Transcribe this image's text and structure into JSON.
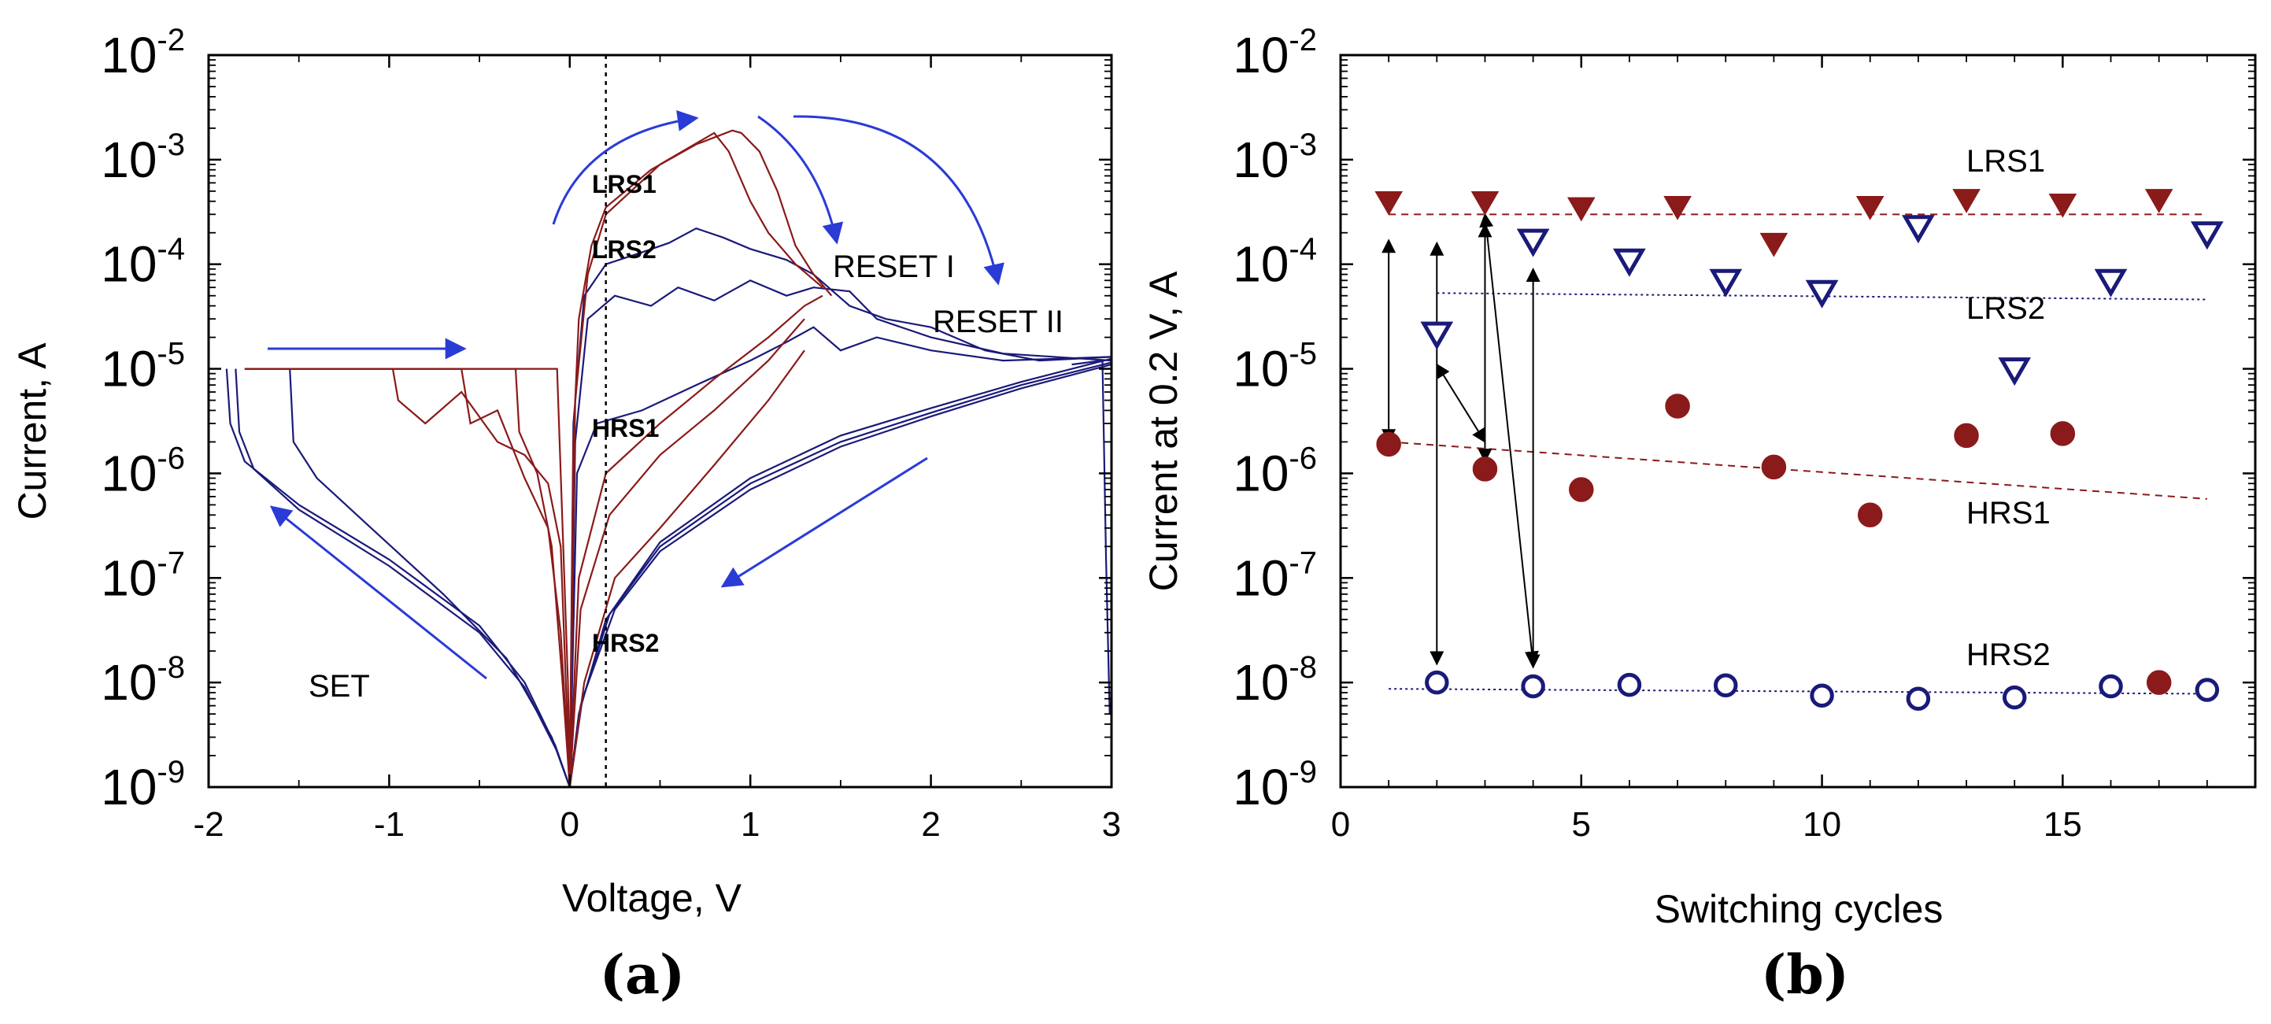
{
  "chart_data": [
    {
      "panel_label": "(a)",
      "type": "line",
      "xlabel": "Voltage, V",
      "ylabel": "Current, A",
      "xlim": [
        -2,
        3
      ],
      "ylim_exponents": [
        -9,
        -2
      ],
      "yscale": "log",
      "x_ticks": [
        "-2",
        "-1",
        "0",
        "1",
        "2",
        "3"
      ],
      "y_tick_base": "10",
      "y_tick_exponents": [
        "-9",
        "-8",
        "-7",
        "-6",
        "-5",
        "-4",
        "-3",
        "-2"
      ],
      "reference_line_x": 0.2,
      "annotations": [
        "LRS1",
        "LRS2",
        "HRS1",
        "HRS2",
        "SET",
        "RESET I",
        "RESET II"
      ],
      "series_colors": {
        "cycle_1": "#8b1a1a",
        "cycle_2": "#1a1a7a",
        "arrow": "#2a3bd6"
      },
      "series": [
        {
          "name": "blue-rest-1",
          "color": "#1a1a7a",
          "points": [
            [
              -1.9,
              1e-05
            ],
            [
              -1.88,
              3e-06
            ],
            [
              -1.8,
              1.3e-06
            ],
            [
              -1.5,
              5e-07
            ],
            [
              -1,
              1.5e-07
            ],
            [
              -0.5,
              3.5e-08
            ],
            [
              -0.25,
              1e-08
            ],
            [
              -0.08,
              2.5e-09
            ],
            [
              0,
              1e-09
            ],
            [
              0.05,
              5e-09
            ],
            [
              0.2,
              4e-08
            ],
            [
              0.5,
              2.2e-07
            ],
            [
              1.0,
              9e-07
            ],
            [
              1.5,
              2.3e-06
            ],
            [
              2.0,
              4.2e-06
            ],
            [
              2.5,
              7.5e-06
            ],
            [
              3.0,
              1.25e-05
            ]
          ]
        },
        {
          "name": "blue-rest-2",
          "color": "#1a1a7a",
          "points": [
            [
              -1.85,
              1e-05
            ],
            [
              -1.83,
              2.5e-06
            ],
            [
              -1.75,
              1.1e-06
            ],
            [
              -1.5,
              4.5e-07
            ],
            [
              -1,
              1.3e-07
            ],
            [
              -0.5,
              3e-08
            ],
            [
              -0.25,
              9e-09
            ],
            [
              -0.07,
              2.2e-09
            ],
            [
              0,
              1e-09
            ],
            [
              0.06,
              6e-09
            ],
            [
              0.22,
              4.5e-08
            ],
            [
              0.5,
              2e-07
            ],
            [
              1.0,
              8e-07
            ],
            [
              1.5,
              2e-06
            ],
            [
              2.0,
              3.8e-06
            ],
            [
              2.5,
              7e-06
            ],
            [
              3.0,
              1.15e-05
            ]
          ]
        },
        {
          "name": "blue-rest-3",
          "color": "#1a1a7a",
          "points": [
            [
              -1.55,
              1e-05
            ],
            [
              -1.53,
              2e-06
            ],
            [
              -1.4,
              9e-07
            ],
            [
              -1.1,
              3e-07
            ],
            [
              -0.7,
              7e-08
            ],
            [
              -0.35,
              1.7e-08
            ],
            [
              -0.1,
              3e-09
            ],
            [
              0,
              1e-09
            ],
            [
              0.07,
              7e-09
            ],
            [
              0.25,
              5e-08
            ],
            [
              0.5,
              1.8e-07
            ],
            [
              1.0,
              7e-07
            ],
            [
              1.5,
              1.8e-06
            ],
            [
              2.0,
              3.5e-06
            ],
            [
              2.5,
              6.5e-06
            ],
            [
              3.0,
              1.1e-05
            ]
          ]
        },
        {
          "name": "blue-lrs",
          "color": "#1a1a7a",
          "points": [
            [
              0,
              1e-09
            ],
            [
              0.02,
              3e-06
            ],
            [
              0.08,
              5e-05
            ],
            [
              0.2,
              0.0001
            ],
            [
              0.4,
              0.00013
            ],
            [
              0.55,
              0.00016
            ],
            [
              0.7,
              0.00022
            ],
            [
              0.85,
              0.00018
            ],
            [
              1.0,
              0.00014
            ],
            [
              1.2,
              0.00011
            ],
            [
              1.35,
              8e-05
            ],
            [
              1.55,
              4e-05
            ],
            [
              1.75,
              3e-05
            ],
            [
              2.0,
              2.5e-05
            ],
            [
              2.3,
              1.5e-05
            ],
            [
              2.6,
              1.2e-05
            ],
            [
              3.0,
              1.3e-05
            ]
          ]
        },
        {
          "name": "blue-lrs-2",
          "color": "#1a1a7a",
          "points": [
            [
              0,
              1e-09
            ],
            [
              0.03,
              2e-06
            ],
            [
              0.1,
              3e-05
            ],
            [
              0.25,
              5e-05
            ],
            [
              0.45,
              4e-05
            ],
            [
              0.6,
              6e-05
            ],
            [
              0.8,
              4.5e-05
            ],
            [
              1.0,
              7e-05
            ],
            [
              1.2,
              5e-05
            ],
            [
              1.35,
              6e-05
            ],
            [
              1.55,
              5.5e-05
            ],
            [
              1.7,
              3e-05
            ],
            [
              2.0,
              2e-05
            ],
            [
              2.4,
              1.4e-05
            ],
            [
              3.0,
              1.2e-05
            ]
          ]
        },
        {
          "name": "blue-hrs1-sweep",
          "color": "#1a1a7a",
          "points": [
            [
              0,
              1e-09
            ],
            [
              0.04,
              1e-06
            ],
            [
              0.15,
              3e-06
            ],
            [
              0.4,
              4e-06
            ],
            [
              0.7,
              7e-06
            ],
            [
              1.0,
              1.2e-05
            ],
            [
              1.2,
              1.8e-05
            ],
            [
              1.35,
              2.5e-05
            ],
            [
              1.5,
              1.5e-05
            ],
            [
              1.7,
              2e-05
            ],
            [
              2.0,
              1.5e-05
            ],
            [
              2.4,
              1.2e-05
            ],
            [
              3.0,
              1.3e-05
            ]
          ]
        },
        {
          "name": "blue-reset2-drop",
          "color": "#1a1a7a",
          "points": [
            [
              2.78,
              1.1e-05
            ],
            [
              2.95,
              1.2e-05
            ],
            [
              2.97,
              1.5e-07
            ],
            [
              2.99,
              5e-09
            ]
          ]
        },
        {
          "name": "red-set-1",
          "color": "#8b1a1a",
          "points": [
            [
              -1.8,
              1e-05
            ],
            [
              -0.98,
              1e-05
            ],
            [
              -0.95,
              5e-06
            ],
            [
              -0.8,
              3e-06
            ],
            [
              -0.6,
              6e-06
            ],
            [
              -0.4,
              2e-06
            ],
            [
              -0.25,
              1.5e-06
            ],
            [
              -0.12,
              8e-07
            ],
            [
              -0.05,
              2e-07
            ],
            [
              0,
              1e-09
            ]
          ]
        },
        {
          "name": "red-set-2",
          "color": "#8b1a1a",
          "points": [
            [
              -1.8,
              1e-05
            ],
            [
              -0.6,
              1e-05
            ],
            [
              -0.55,
              3e-06
            ],
            [
              -0.4,
              4e-06
            ],
            [
              -0.25,
              9e-07
            ],
            [
              -0.12,
              3e-07
            ],
            [
              -0.05,
              3e-08
            ],
            [
              0,
              1e-09
            ]
          ]
        },
        {
          "name": "red-set-3",
          "color": "#8b1a1a",
          "points": [
            [
              -1.8,
              1e-05
            ],
            [
              -0.3,
              1e-05
            ],
            [
              -0.28,
              2.5e-06
            ],
            [
              -0.18,
              1e-06
            ],
            [
              -0.1,
              2e-07
            ],
            [
              -0.04,
              1e-08
            ],
            [
              0,
              1e-09
            ]
          ]
        },
        {
          "name": "red-set-4",
          "color": "#8b1a1a",
          "points": [
            [
              -1.8,
              1e-05
            ],
            [
              -0.07,
              1e-05
            ],
            [
              -0.05,
              1e-06
            ],
            [
              -0.03,
              1e-07
            ],
            [
              -0.01,
              1e-08
            ],
            [
              0,
              1e-09
            ]
          ]
        },
        {
          "name": "red-lrs1",
          "color": "#8b1a1a",
          "points": [
            [
              0,
              1e-09
            ],
            [
              0.02,
              2e-06
            ],
            [
              0.05,
              3e-05
            ],
            [
              0.12,
              0.00015
            ],
            [
              0.2,
              0.00035
            ],
            [
              0.45,
              0.0008
            ],
            [
              0.7,
              0.0014
            ],
            [
              0.9,
              0.0019
            ],
            [
              0.95,
              0.0018
            ],
            [
              1.05,
              0.0012
            ],
            [
              1.15,
              0.0005
            ],
            [
              1.25,
              0.00015
            ],
            [
              1.35,
              8e-05
            ],
            [
              1.45,
              5e-05
            ]
          ]
        },
        {
          "name": "red-lrs1-b",
          "color": "#8b1a1a",
          "points": [
            [
              0,
              1e-09
            ],
            [
              0.03,
              5e-06
            ],
            [
              0.1,
              8e-05
            ],
            [
              0.2,
              0.0003
            ],
            [
              0.5,
              0.0009
            ],
            [
              0.8,
              0.0018
            ],
            [
              0.88,
              0.0012
            ],
            [
              1.0,
              0.0004
            ],
            [
              1.1,
              0.0002
            ],
            [
              1.25,
              0.0001
            ],
            [
              1.4,
              6e-05
            ]
          ]
        },
        {
          "name": "red-hrs1-1",
          "color": "#8b1a1a",
          "points": [
            [
              0,
              1e-09
            ],
            [
              0.05,
              1e-07
            ],
            [
              0.2,
              1e-06
            ],
            [
              0.5,
              3e-06
            ],
            [
              0.8,
              8e-06
            ],
            [
              1.1,
              2e-05
            ],
            [
              1.3,
              4e-05
            ],
            [
              1.4,
              5e-05
            ]
          ]
        },
        {
          "name": "red-hrs1-2",
          "color": "#8b1a1a",
          "points": [
            [
              0,
              1e-09
            ],
            [
              0.06,
              5e-08
            ],
            [
              0.22,
              4e-07
            ],
            [
              0.5,
              1.5e-06
            ],
            [
              0.8,
              4e-06
            ],
            [
              1.1,
              1.2e-05
            ],
            [
              1.3,
              3e-05
            ]
          ]
        },
        {
          "name": "red-hrs2",
          "color": "#8b1a1a",
          "points": [
            [
              0,
              1e-09
            ],
            [
              0.08,
              1e-08
            ],
            [
              0.25,
              1e-07
            ],
            [
              0.5,
              3e-07
            ],
            [
              0.8,
              1.2e-06
            ],
            [
              1.1,
              5e-06
            ],
            [
              1.3,
              1.5e-05
            ]
          ]
        }
      ]
    },
    {
      "panel_label": "(b)",
      "type": "scatter",
      "xlabel": "Switching cycles",
      "ylabel": "Current at 0.2 V, A",
      "xlim": [
        0,
        19
      ],
      "ylim_exponents": [
        -9,
        -2
      ],
      "yscale": "log",
      "x_ticks": [
        "0",
        "5",
        "10",
        "15"
      ],
      "y_tick_base": "10",
      "y_tick_exponents": [
        "-9",
        "-8",
        "-7",
        "-6",
        "-5",
        "-4",
        "-3",
        "-2"
      ],
      "annotations": [
        "LRS1",
        "LRS2",
        "HRS1",
        "HRS2"
      ],
      "series": [
        {
          "name": "LRS1",
          "marker": "filled-triangle-down",
          "color": "#8b1a1a",
          "x": [
            1,
            3,
            5,
            7,
            9,
            11,
            13,
            15,
            17
          ],
          "y": [
            0.0004,
            0.0004,
            0.00035,
            0.00036,
            0.00016,
            0.00036,
            0.00042,
            0.00038,
            0.00042
          ]
        },
        {
          "name": "LRS2",
          "marker": "open-triangle-down",
          "color": "#1a1a7a",
          "x": [
            2,
            4,
            6,
            8,
            10,
            12,
            14,
            16,
            18
          ],
          "y": [
            2.2e-05,
            0.00017,
            0.00011,
            7e-05,
            5.5e-05,
            0.00023,
            1e-05,
            7e-05,
            0.0002
          ]
        },
        {
          "name": "HRS1",
          "marker": "filled-circle",
          "color": "#8b1a1a",
          "x": [
            1,
            3,
            5,
            7,
            9,
            11,
            13,
            15,
            17
          ],
          "y": [
            1.9e-06,
            1.1e-06,
            7e-07,
            4.4e-06,
            1.15e-06,
            4e-07,
            2.3e-06,
            2.4e-06,
            1e-08
          ]
        },
        {
          "name": "HRS2",
          "marker": "open-circle",
          "color": "#1a1a7a",
          "x": [
            2,
            4,
            6,
            8,
            10,
            12,
            14,
            16,
            18
          ],
          "y": [
            1e-08,
            9.2e-09,
            9.5e-09,
            9.4e-09,
            7.5e-09,
            7e-09,
            7.2e-09,
            9.2e-09,
            8.5e-09
          ]
        }
      ],
      "trend_lines": [
        {
          "name": "LRS1-trend",
          "color": "#8b1a1a",
          "x": [
            1,
            18
          ],
          "y": [
            0.0003,
            0.0003
          ]
        },
        {
          "name": "LRS2-trend",
          "color": "#1a1a7a",
          "x": [
            2,
            18
          ],
          "y": [
            5.3e-05,
            4.6e-05
          ]
        },
        {
          "name": "HRS1-trend",
          "color": "#8b1a1a",
          "x": [
            1,
            18
          ],
          "y": [
            2e-06,
            5.7e-07
          ]
        },
        {
          "name": "HRS2-trend",
          "color": "#1a1a7a",
          "x": [
            1,
            18
          ],
          "y": [
            8.7e-09,
            7.8e-09
          ]
        }
      ],
      "transition_arrows": [
        {
          "x1": 1,
          "y1": 2e-06,
          "x2": 1,
          "y2": 0.00017
        },
        {
          "x1": 2,
          "y1": 0.00016,
          "x2": 2,
          "y2": 1.5e-08
        },
        {
          "x1": 2,
          "y1": 1.1e-05,
          "x2": 3,
          "y2": 2e-06
        },
        {
          "x1": 3,
          "y1": 1.3e-06,
          "x2": 3,
          "y2": 0.00024
        },
        {
          "x1": 3,
          "y1": 0.0003,
          "x2": 4,
          "y2": 1.5e-08
        },
        {
          "x1": 4,
          "y1": 1.4e-08,
          "x2": 4,
          "y2": 9e-05
        }
      ]
    }
  ]
}
